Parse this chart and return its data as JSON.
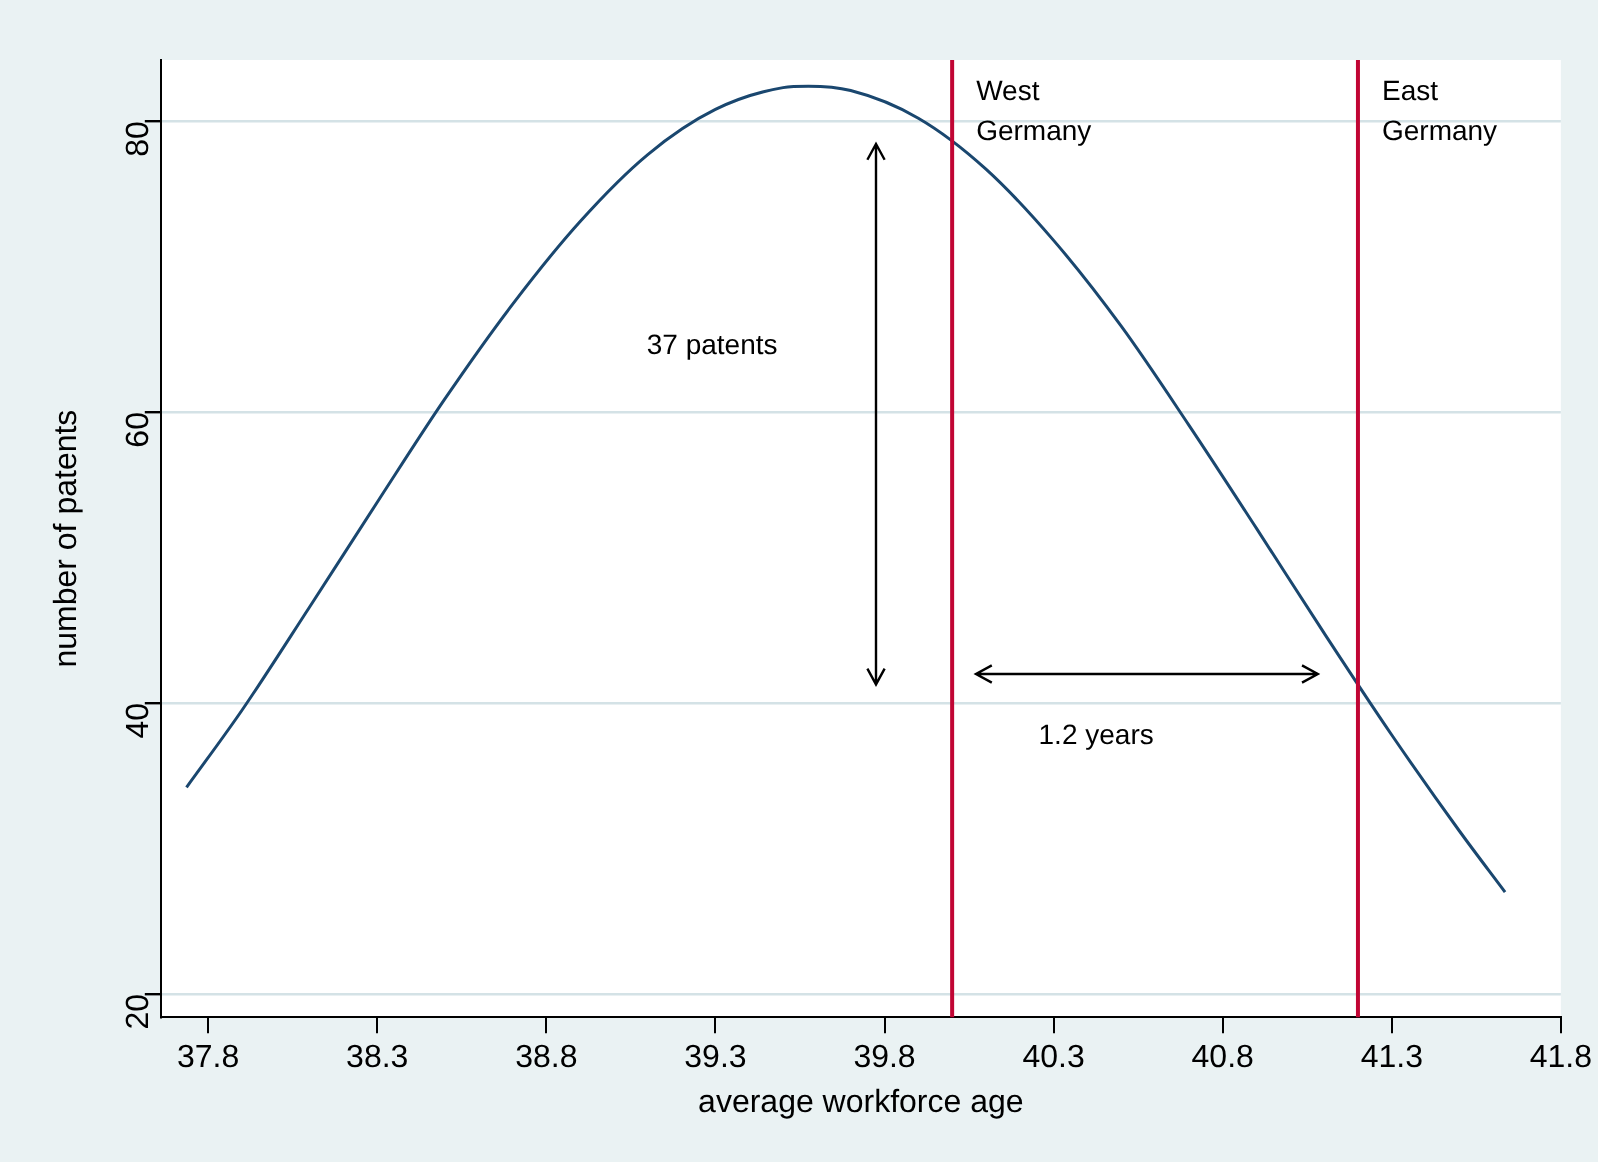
{
  "chart_data": {
    "type": "line",
    "xlabel": "average workforce age",
    "ylabel": "number of patents",
    "xlim": [
      37.66,
      41.8
    ],
    "xticks": [
      37.8,
      38.3,
      38.8,
      39.3,
      39.8,
      40.3,
      40.8,
      41.3,
      41.8
    ],
    "ylim": [
      18.4,
      84.2
    ],
    "yticks": [
      20,
      40,
      60,
      80
    ],
    "grid": "y",
    "legend": false,
    "marker": "none",
    "line_style": "solid",
    "series": [
      {
        "color": "#1a476f",
        "x": [
          37.736,
          37.9,
          38.1,
          38.3,
          38.5,
          38.7,
          38.9,
          39.1,
          39.3,
          39.5,
          39.575,
          39.7,
          39.9,
          40.1,
          40.3,
          40.5,
          40.7,
          40.9,
          41.1,
          41.3,
          41.5,
          41.635
        ],
        "values": [
          34.2,
          39.5,
          46.6,
          53.8,
          60.9,
          67.4,
          73.1,
          77.7,
          80.8,
          82.3,
          82.4,
          82.1,
          80.2,
          76.7,
          71.8,
          65.9,
          59.1,
          52.0,
          44.8,
          37.8,
          31.2,
          27.0
        ]
      }
    ],
    "ref_lines": [
      {
        "axis": "x",
        "value": 40.0,
        "label": "West Germany",
        "color": "#c10534"
      },
      {
        "axis": "x",
        "value": 41.2,
        "label": "East Germany",
        "color": "#c10534"
      }
    ],
    "annotations": [
      "37 patents",
      "1.2 years"
    ]
  }
}
